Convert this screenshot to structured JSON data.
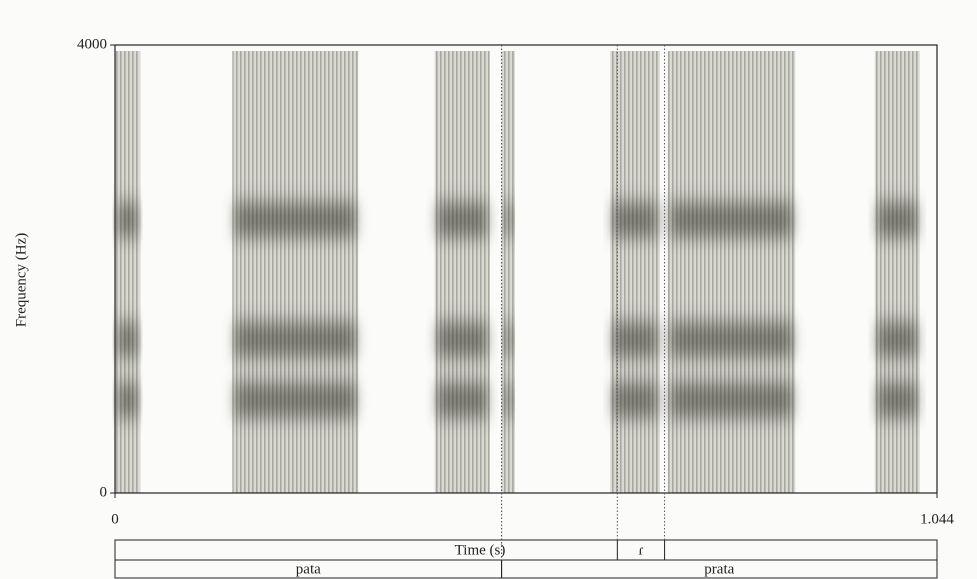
{
  "chart_data": {
    "type": "spectrogram",
    "ylabel": "Frequency (Hz)",
    "xlabel": "Time (s)",
    "xlim": [
      0,
      1.044
    ],
    "ylim": [
      0,
      4000
    ],
    "xticks": [
      0,
      1.044
    ],
    "yticks": [
      0,
      4000
    ],
    "color": "#3a3a32",
    "segments": [
      {
        "start": 0,
        "end": 0.032
      },
      {
        "start": 0.149,
        "end": 0.309
      },
      {
        "start": 0.406,
        "end": 0.476
      },
      {
        "start": 0.491,
        "end": 0.508
      },
      {
        "start": 0.629,
        "end": 0.692
      },
      {
        "start": 0.702,
        "end": 0.864
      },
      {
        "start": 0.965,
        "end": 1.022
      }
    ],
    "formants": [
      830,
      1370,
      2440
    ],
    "tiers": [
      {
        "intervals": [
          {
            "start": 0.638,
            "end": 0.698,
            "label": "ɾ"
          }
        ]
      },
      {
        "intervals": [
          {
            "start": 0,
            "end": 0.491,
            "label": "pata"
          },
          {
            "start": 0.491,
            "end": 1.044,
            "label": "prata"
          }
        ]
      }
    ]
  }
}
